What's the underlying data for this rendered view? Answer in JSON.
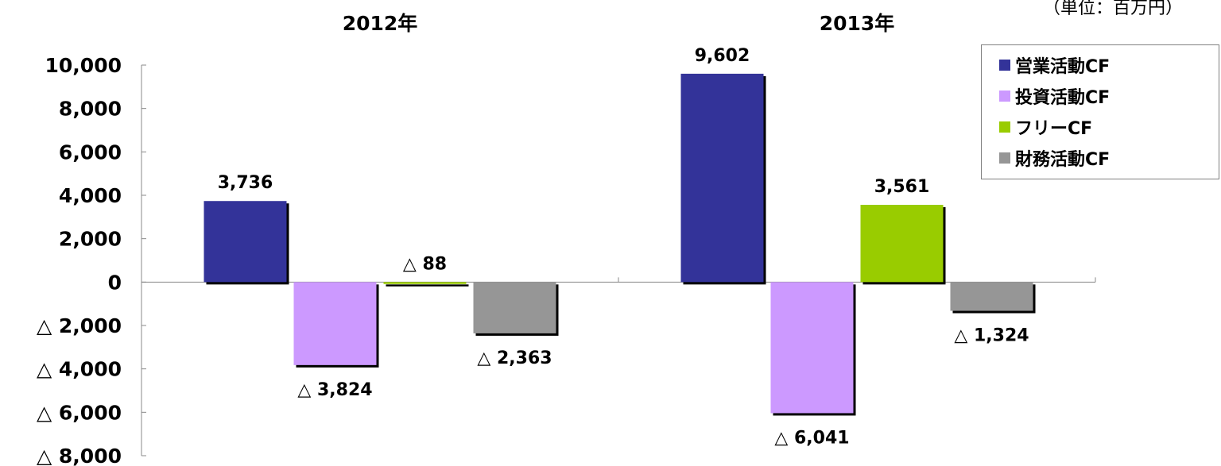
{
  "unit_note": "（単位：百万円）",
  "chart_data": {
    "type": "bar",
    "categories": [
      "2012年",
      "2013年"
    ],
    "ylim": [
      -8000,
      10000
    ],
    "yticks": [
      10000,
      8000,
      6000,
      4000,
      2000,
      0,
      -2000,
      -4000,
      -6000,
      -8000
    ],
    "ytick_labels": [
      "10,000",
      "8,000",
      "6,000",
      "4,000",
      "2,000",
      "0",
      "△ 2,000",
      "△ 4,000",
      "△ 6,000",
      "△ 8,000"
    ],
    "grid": false,
    "legend_position": "top-right",
    "series": [
      {
        "name": "営業活動CF",
        "color": "#333399",
        "values": [
          3736,
          9602
        ],
        "labels": [
          "3,736",
          "9,602"
        ]
      },
      {
        "name": "投資活動CF",
        "color": "#cc99ff",
        "values": [
          -3824,
          -6041
        ],
        "labels": [
          "△ 3,824",
          "△ 6,041"
        ]
      },
      {
        "name": "フリーCF",
        "color": "#99cc00",
        "values": [
          -88,
          3561
        ],
        "labels": [
          "△ 88",
          "3,561"
        ]
      },
      {
        "name": "財務活動CF",
        "color": "#969696",
        "values": [
          -2363,
          -1324
        ],
        "labels": [
          "△ 2,363",
          "△ 1,324"
        ]
      }
    ]
  }
}
